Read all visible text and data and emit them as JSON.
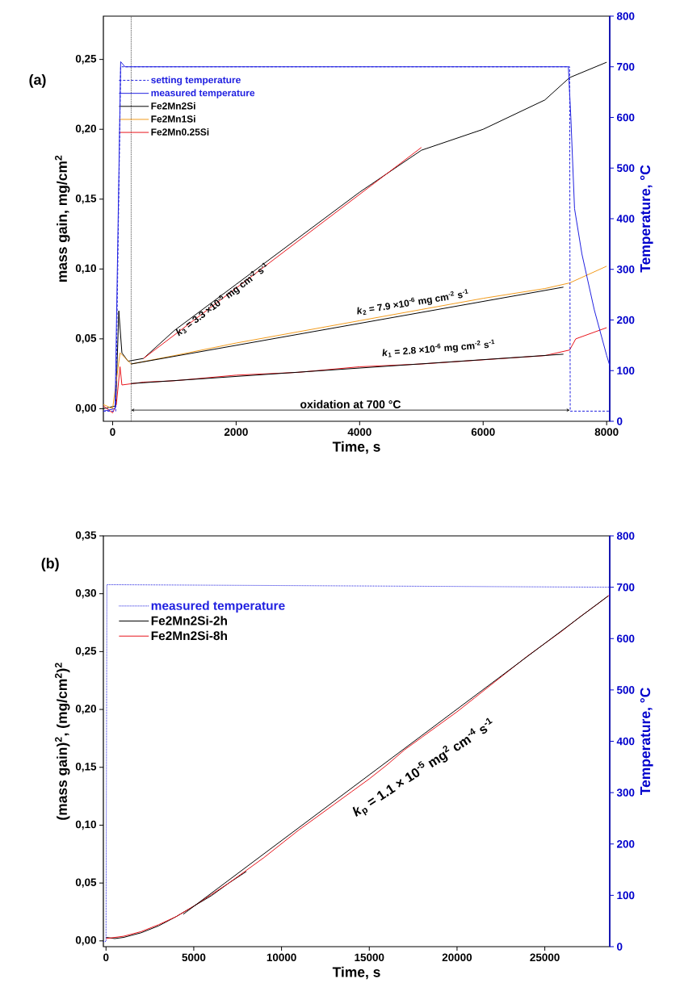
{
  "chart_data": [
    {
      "type": "line",
      "xlabel": "Time, s",
      "ylabel": "mass gain, mg/cm$^{2}$",
      "y2label": "Temperature, °C",
      "xlim": [
        -150,
        8050
      ],
      "ylim": [
        -0.009,
        0.281
      ],
      "y2lim": [
        0,
        800
      ],
      "xticks": [
        0,
        2000,
        4000,
        6000,
        8000
      ],
      "yticks": [
        {
          "value": 0,
          "label": "0,00"
        },
        {
          "value": 0.05,
          "label": "0,05"
        },
        {
          "value": 0.1,
          "label": "0,10"
        },
        {
          "value": 0.15,
          "label": "0,15"
        },
        {
          "value": 0.2,
          "label": "0,20"
        },
        {
          "value": 0.25,
          "label": "0,25"
        }
      ],
      "y2ticks": [
        0,
        100,
        200,
        300,
        400,
        500,
        600,
        700,
        800
      ],
      "legend": "top left",
      "series": [
        {
          "name": "setting temperature",
          "color": "#2020e0",
          "axis": "y2",
          "line_style": "dashed",
          "x": [
            -150,
            50,
            130,
            7400,
            7410,
            8050
          ],
          "values": [
            20,
            20,
            700,
            700,
            20,
            20
          ]
        },
        {
          "name": "measured temperature",
          "color": "#2020e0",
          "axis": "y2",
          "line_style": "solid",
          "x": [
            -150,
            40,
            130,
            200,
            7380,
            7420,
            7480,
            7600,
            7800,
            8000,
            8050
          ],
          "values": [
            20,
            25,
            710,
            700,
            700,
            600,
            420,
            330,
            220,
            130,
            110
          ]
        },
        {
          "name": "Fe2Mn2Si",
          "color": "#000000",
          "line_style": "solid",
          "x": [
            -150,
            50,
            100,
            150,
            250,
            500,
            1000,
            2000,
            3000,
            4000,
            5000,
            6000,
            7000,
            7400,
            8000
          ],
          "values": [
            0.0,
            0.002,
            0.07,
            0.04,
            0.034,
            0.036,
            0.056,
            0.089,
            0.122,
            0.155,
            0.185,
            0.2,
            0.221,
            0.237,
            0.248
          ]
        },
        {
          "name": "Fe2Mn1Si",
          "color": "#f29b1c",
          "line_style": "solid",
          "x": [
            -150,
            0,
            120,
            300,
            1000,
            2000,
            3000,
            4000,
            5000,
            6000,
            7000,
            7400,
            8000
          ],
          "values": [
            0.003,
            0.0,
            0.04,
            0.032,
            0.038,
            0.047,
            0.055,
            0.063,
            0.071,
            0.079,
            0.086,
            0.09,
            0.102
          ]
        },
        {
          "name": "Fe2Mn0.25Si",
          "color": "#e8141b",
          "line_style": "solid",
          "x": [
            -150,
            0,
            60,
            120,
            150,
            500,
            1000,
            2000,
            3000,
            4000,
            5000,
            6000,
            7000,
            7400,
            7500,
            8000
          ],
          "values": [
            0.002,
            -0.003,
            0.003,
            0.03,
            0.017,
            0.019,
            0.02,
            0.024,
            0.026,
            0.03,
            0.032,
            0.035,
            0.038,
            0.042,
            0.05,
            0.058
          ]
        },
        {
          "color": "#e8141b",
          "line_style": "solid",
          "x": [
            500,
            5000
          ],
          "values": [
            0.036,
            0.187
          ]
        },
        {
          "color": "#000000",
          "line_style": "solid",
          "x": [
            300,
            7300
          ],
          "values": [
            0.032,
            0.087
          ]
        },
        {
          "color": "#000000",
          "line_style": "solid",
          "x": [
            300,
            7300
          ],
          "values": [
            0.018,
            0.039
          ]
        }
      ],
      "ref_lines": [
        {
          "axis": "x",
          "value": 300,
          "color": "#000000",
          "line_style": "dotted"
        }
      ],
      "annotations": [
        "(a)",
        "*k*$_{3}$ = 3.3 ×10$^{-5}$ mg cm$^{-2}$ s$^{-1}$",
        "*k*$_{2}$ = 7.9 ×10$^{-6}$ mg cm$^{-2}$ s$^{-1}$",
        "*k*$_{1}$ = 2.8 ×10$^{-6}$ mg cm$^{-2}$ s$^{-1}$",
        "oxidation at 700 °C"
      ]
    },
    {
      "type": "line",
      "xlabel": "Time, s",
      "ylabel": "(mass gain)$^{2}$, (mg/cm$^{2}$)$^{2}$",
      "y2label": "Temperature, °C",
      "xlim": [
        -150,
        28700
      ],
      "ylim": [
        -0.005,
        0.35
      ],
      "y2lim": [
        0,
        800
      ],
      "xticks": [
        0,
        5000,
        10000,
        15000,
        20000,
        25000
      ],
      "yticks": [
        {
          "value": 0,
          "label": "0,00"
        },
        {
          "value": 0.05,
          "label": "0,05"
        },
        {
          "value": 0.1,
          "label": "0,10"
        },
        {
          "value": 0.15,
          "label": "0,15"
        },
        {
          "value": 0.2,
          "label": "0,20"
        },
        {
          "value": 0.25,
          "label": "0,25"
        },
        {
          "value": 0.3,
          "label": "0,30"
        },
        {
          "value": 0.35,
          "label": "0,35"
        }
      ],
      "y2ticks": [
        0,
        100,
        200,
        300,
        400,
        500,
        600,
        700,
        800
      ],
      "legend": "top left",
      "series": [
        {
          "name": "measured temperature",
          "color": "#2020e0",
          "axis": "y2",
          "line_style": "dotted",
          "x": [
            -150,
            0,
            50,
            28700
          ],
          "values": [
            10,
            10,
            705,
            700
          ]
        },
        {
          "name": "Fe2Mn2Si-2h",
          "color": "#000000",
          "line_style": "solid",
          "x": [
            0,
            500,
            1000,
            2000,
            3000,
            4000,
            5000,
            6000,
            7000,
            8000
          ],
          "values": [
            0.003,
            0.002,
            0.003,
            0.007,
            0.013,
            0.021,
            0.03,
            0.039,
            0.05,
            0.06
          ]
        },
        {
          "name": "Fe2Mn2Si-8h",
          "color": "#e8141b",
          "line_style": "solid",
          "x": [
            0,
            1000,
            2000,
            3000,
            4000,
            5000,
            6000,
            7000,
            8000,
            9000,
            10000,
            11000,
            12000,
            13000,
            14000,
            15000,
            16000,
            17000,
            18000,
            19000,
            20000,
            21000,
            22000,
            23000,
            24000,
            25000,
            26000,
            27000,
            28000,
            28700
          ],
          "values": [
            0.002,
            0.004,
            0.008,
            0.014,
            0.021,
            0.03,
            0.04,
            0.05,
            0.061,
            0.072,
            0.084,
            0.096,
            0.107,
            0.118,
            0.129,
            0.14,
            0.152,
            0.165,
            0.176,
            0.187,
            0.198,
            0.21,
            0.222,
            0.234,
            0.246,
            0.257,
            0.268,
            0.28,
            0.291,
            0.299
          ]
        },
        {
          "color": "#000000",
          "line_style": "solid",
          "x": [
            4400,
            28600
          ],
          "values": [
            0.023,
            0.298
          ]
        }
      ],
      "annotations": [
        "(b)",
        "*k*$_{p}$ = 1.1 × 10$^{-5}$ mg$^{2}$ cm$^{-4}$ s$^{-1}$"
      ]
    }
  ]
}
